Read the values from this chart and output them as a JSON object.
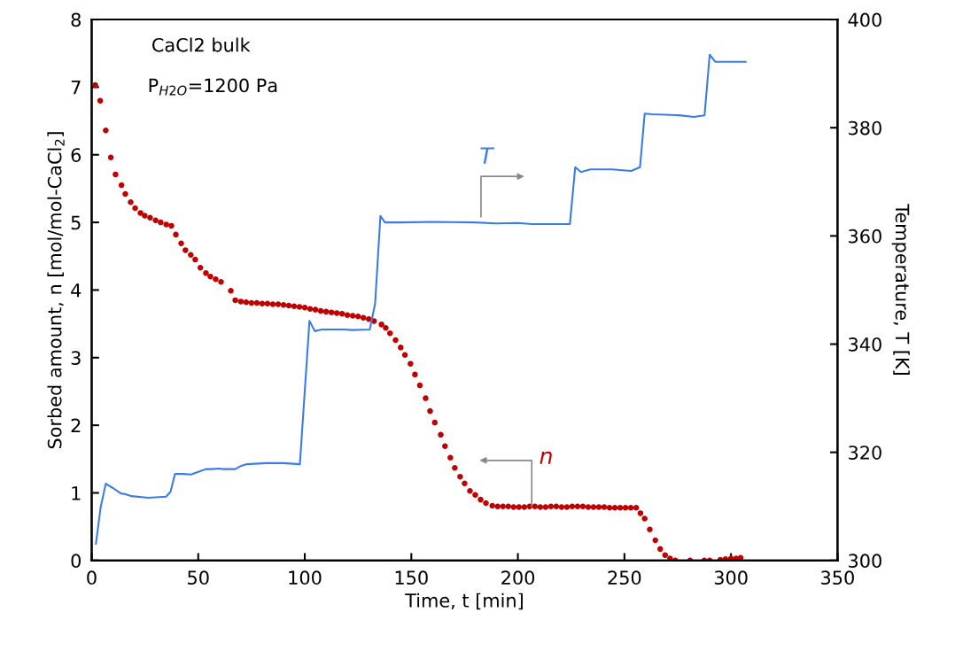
{
  "chart_data": {
    "type": "line",
    "xlabel": "Time, t [min]",
    "ylabel": "Sorbed amount, n [mol/mol-CaCl$_{2}$]",
    "y2label": "Temperature, T [K]",
    "xlim": [
      0,
      350
    ],
    "xticks": [
      0,
      50,
      100,
      150,
      200,
      250,
      300,
      350
    ],
    "ylim": [
      0,
      8
    ],
    "yticks": [
      0,
      1,
      2,
      3,
      4,
      5,
      6,
      7,
      8
    ],
    "y2lim": [
      300,
      400
    ],
    "y2ticks": [
      300,
      320,
      340,
      360,
      380,
      400
    ],
    "grid": false,
    "legend": false,
    "annotations": [
      "CaCl2 bulk",
      "P$_{H2O}$=1200 Pa",
      "T",
      "n"
    ],
    "series": [
      {
        "type": "scatter",
        "marker": "circle",
        "color": "#c00000",
        "x": [
          1.7,
          4,
          6.6,
          9,
          11.2,
          14,
          15.8,
          18.3,
          20.4,
          22.9,
          24.9,
          27.4,
          30,
          32.4,
          35,
          37.4,
          39.5,
          42,
          44,
          46.5,
          48.6,
          51,
          53.6,
          55.7,
          58.2,
          60.7,
          65.3,
          67.4,
          70,
          72.5,
          75,
          77.5,
          80,
          82.5,
          85,
          87.5,
          90,
          92.5,
          95,
          97.5,
          100,
          102.5,
          105,
          107.5,
          110,
          112.5,
          115,
          117.5,
          120,
          122.5,
          125,
          127.5,
          130,
          132.5,
          136,
          138,
          140,
          142.6,
          145,
          147,
          149.6,
          151.7,
          154,
          156.7,
          158.8,
          161,
          163.8,
          165.8,
          168.3,
          170.4,
          172.9,
          175,
          177.5,
          180,
          182.5,
          185,
          188,
          190.5,
          193,
          195.5,
          198,
          200.5,
          203,
          205.5,
          208,
          210.5,
          213,
          215.5,
          218,
          220.5,
          223,
          225.5,
          228,
          230.5,
          233,
          235.5,
          238,
          240.5,
          243,
          245.5,
          248,
          250.5,
          253,
          255.5,
          257.5,
          259.5,
          261.9,
          264.5,
          266.8,
          269.1,
          271.4,
          273.9,
          280.8,
          287.5,
          290,
          295,
          297.4,
          300,
          302.4,
          304.5
        ],
        "values": [
          7.03,
          6.8,
          6.36,
          5.96,
          5.71,
          5.55,
          5.42,
          5.3,
          5.21,
          5.14,
          5.1,
          5.07,
          5.03,
          5.0,
          4.97,
          4.95,
          4.82,
          4.69,
          4.59,
          4.52,
          4.45,
          4.33,
          4.25,
          4.2,
          4.16,
          4.12,
          3.99,
          3.85,
          3.83,
          3.82,
          3.81,
          3.81,
          3.8,
          3.8,
          3.79,
          3.79,
          3.78,
          3.77,
          3.76,
          3.75,
          3.74,
          3.72,
          3.71,
          3.69,
          3.68,
          3.67,
          3.66,
          3.65,
          3.63,
          3.62,
          3.61,
          3.59,
          3.57,
          3.54,
          3.49,
          3.44,
          3.36,
          3.26,
          3.15,
          3.04,
          2.91,
          2.75,
          2.59,
          2.4,
          2.21,
          2.04,
          1.86,
          1.69,
          1.52,
          1.37,
          1.24,
          1.14,
          1.03,
          0.97,
          0.9,
          0.85,
          0.81,
          0.8,
          0.8,
          0.8,
          0.79,
          0.79,
          0.79,
          0.8,
          0.8,
          0.79,
          0.79,
          0.8,
          0.8,
          0.79,
          0.79,
          0.8,
          0.8,
          0.8,
          0.79,
          0.79,
          0.79,
          0.79,
          0.78,
          0.78,
          0.78,
          0.78,
          0.78,
          0.78,
          0.7,
          0.62,
          0.46,
          0.3,
          0.17,
          0.08,
          0.03,
          0.0,
          0.0,
          0.0,
          0.0,
          0.01,
          0.02,
          0.03,
          0.03,
          0.04
        ]
      },
      {
        "axis": "y2",
        "marker": "none",
        "line_style": "solid",
        "color": "#3a7bea",
        "x": [
          2,
          4.2,
          6.6,
          10,
          13.7,
          15.6,
          18.7,
          26.6,
          34.9,
          37,
          39.1,
          43,
          46.6,
          50,
          53.6,
          56.2,
          59.7,
          61.7,
          67.4,
          70.2,
          72.8,
          81.9,
          90,
          97.7,
          102.2,
          104.7,
          108,
          119.1,
          122,
          130.5,
          133,
          135.5,
          137.6,
          145,
          160,
          180,
          190,
          200,
          206.6,
          224.4,
          226.9,
          229.6,
          234,
          244.2,
          253.2,
          257.3,
          259.5,
          263,
          275.6,
          282.6,
          287.6,
          290,
          292.6,
          306.9
        ],
        "values": [
          303.1,
          309.8,
          314.2,
          313.4,
          312.4,
          312.3,
          311.9,
          311.6,
          311.8,
          312.7,
          316,
          316,
          315.9,
          316.4,
          316.9,
          316.9,
          317,
          316.9,
          316.9,
          317.5,
          317.8,
          318,
          318,
          317.8,
          344.3,
          342.4,
          342.7,
          342.7,
          342.6,
          342.7,
          347.5,
          363.7,
          362.5,
          362.5,
          362.6,
          362.5,
          362.3,
          362.4,
          362.2,
          362.2,
          372.7,
          371.8,
          372.3,
          372.3,
          372,
          372.7,
          382.6,
          382.5,
          382.3,
          382,
          382.3,
          393.5,
          392.2,
          392.2
        ]
      }
    ]
  }
}
